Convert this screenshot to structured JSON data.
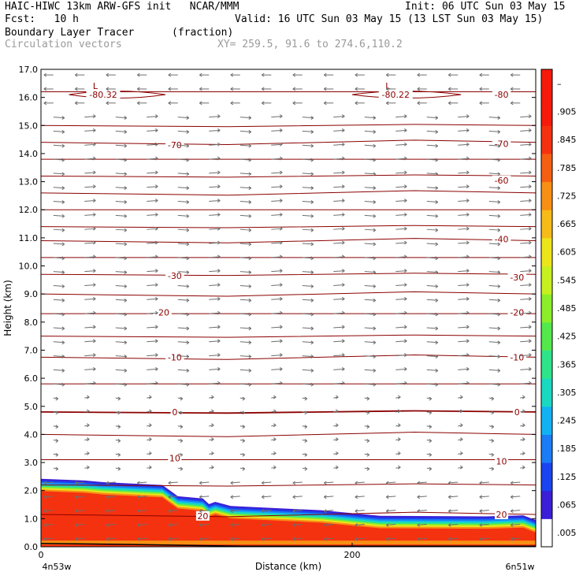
{
  "header": {
    "title_left": "HAIC-HIWC 13km ARW-GFS init   NCAR/MMM",
    "init": "Init: 06 UTC Sun 03 May 15",
    "fcst": "Fcst:   10 h",
    "valid": "Valid: 16 UTC Sun 03 May 15 (13 LST Sun 03 May 15)",
    "field": "Boundary Layer Tracer",
    "field_units": "(fraction)",
    "vectors": "Circulation vectors",
    "xy": "XY= 259.5, 91.6 to 274.6,110.2"
  },
  "colors": {
    "contour": "#8b0000",
    "vector": "#6e6e6e",
    "colorbar": [
      "#ffffff",
      "#3b1fd6",
      "#1a44f0",
      "#1c7cf5",
      "#12b2f2",
      "#1ad9c0",
      "#2fe38a",
      "#54e84c",
      "#8ced2a",
      "#c6f020",
      "#ede51c",
      "#f6bb18",
      "#f78f14",
      "#f55f12",
      "#f5320f",
      "#f51a0c",
      "#f5190b",
      "#f5180b",
      "#f5170a",
      "#f5160a",
      "#f5150a",
      "#f5140a",
      "#f5130a",
      "#f5120a",
      "#f5110a",
      "#f5100a",
      "#f50f0a",
      "#f50e0a",
      "#f50d0a",
      "#f50c0a",
      "#f50b0a",
      "#f50a0a",
      "#f50a0a",
      "#f50a0a",
      "#f50a0a",
      "#f50a0a",
      "#f50a0a",
      "#f50a0a",
      "#f50a0a",
      "#f50a0a"
    ]
  },
  "chart_data": {
    "type": "heatmap",
    "title": "Boundary Layer Tracer",
    "units": "(fraction)",
    "xlabel": "Distance (km)",
    "ylabel": "Height (km)",
    "xlim": [
      0,
      318
    ],
    "ylim": [
      0,
      17
    ],
    "x_ticks": [
      0,
      200
    ],
    "x_end_labels": [
      "4n53w",
      "6n51w"
    ],
    "y_ticks": [
      0.0,
      1.0,
      2.0,
      3.0,
      4.0,
      5.0,
      6.0,
      7.0,
      8.0,
      9.0,
      10.0,
      11.0,
      12.0,
      13.0,
      14.0,
      15.0,
      16.0,
      17.0
    ],
    "y_tick_labels": [
      "0.0",
      "1.0",
      "2.0",
      "3.0",
      "4.0",
      "5.0",
      "6.0",
      "7.0",
      "8.0",
      "9.0",
      "10.0",
      "11.0",
      "12.0",
      "13.0",
      "14.0",
      "15.0",
      "16.0",
      "17.0"
    ],
    "colorbar_labels": [
      ".005",
      ".065",
      ".125",
      ".185",
      ".245",
      ".305",
      ".365",
      ".425",
      ".485",
      ".545",
      ".605",
      ".665",
      ".725",
      ".785",
      ".845",
      ".905",
      "–"
    ],
    "boundary_layer_top_km": [
      [
        0,
        2.42
      ],
      [
        28,
        2.36
      ],
      [
        40,
        2.3
      ],
      [
        78,
        2.2
      ],
      [
        88,
        1.8
      ],
      [
        104,
        1.72
      ],
      [
        108,
        1.52
      ],
      [
        112,
        1.6
      ],
      [
        122,
        1.45
      ],
      [
        180,
        1.3
      ],
      [
        218,
        1.1
      ],
      [
        286,
        1.08
      ],
      [
        310,
        1.12
      ],
      [
        318,
        0.95
      ]
    ],
    "temperature_contours": [
      {
        "level": -80.32,
        "label": "-80.32",
        "low_label": "L",
        "x": 40,
        "y": 16.1
      },
      {
        "level": -80.22,
        "label": "-80.22",
        "low_label": "L",
        "x": 228,
        "y": 16.1
      },
      {
        "level": -80,
        "label": "-80",
        "x": 296,
        "y": 16.1
      },
      {
        "level": -70,
        "label": "-70",
        "x": 86,
        "y": 14.3
      },
      {
        "level": -70,
        "label": "-70",
        "x": 296,
        "y": 14.35
      },
      {
        "level": -60,
        "label": "-60",
        "x": 296,
        "y": 13.05
      },
      {
        "level": -40,
        "label": "-40",
        "x": 296,
        "y": 10.95
      },
      {
        "level": -30,
        "label": "-30",
        "x": 86,
        "y": 9.65
      },
      {
        "level": -30,
        "label": "-30",
        "x": 306,
        "y": 9.6
      },
      {
        "level": -20,
        "label": "-20",
        "x": 78,
        "y": 8.35
      },
      {
        "level": -20,
        "label": "-20",
        "x": 306,
        "y": 8.35
      },
      {
        "level": -10,
        "label": "-10",
        "x": 86,
        "y": 6.75
      },
      {
        "level": -10,
        "label": "-10",
        "x": 306,
        "y": 6.75
      },
      {
        "level": 0,
        "label": "0",
        "x": 86,
        "y": 4.8
      },
      {
        "level": 0,
        "label": "0",
        "x": 306,
        "y": 4.8
      },
      {
        "level": 10,
        "label": "10",
        "x": 86,
        "y": 3.15
      },
      {
        "level": 10,
        "label": "10",
        "x": 296,
        "y": 3.05
      },
      {
        "level": 20,
        "label": "20",
        "x": 104,
        "y": 1.1
      },
      {
        "level": 20,
        "label": "20",
        "x": 296,
        "y": 1.15
      }
    ],
    "contour_lines_km": [
      16.2,
      15.0,
      14.4,
      13.8,
      13.2,
      12.6,
      12.0,
      11.4,
      10.9,
      10.3,
      9.7,
      9.0,
      8.3,
      7.5,
      6.75,
      5.8,
      4.8,
      4.0,
      3.1,
      2.2,
      1.15
    ]
  }
}
